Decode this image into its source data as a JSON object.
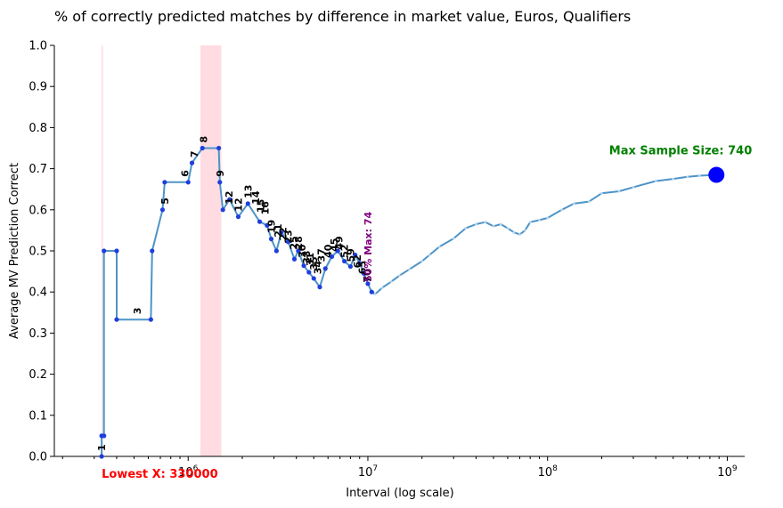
{
  "chart_data": {
    "type": "line",
    "title": "% of correctly predicted matches by difference in market value, Euros, Qualifiers",
    "xlabel": "Interval (log scale)",
    "ylabel": "Average MV Prediction Correct",
    "x_scale": "log",
    "xlim": [
      180000,
      1250000000
    ],
    "ylim": [
      0,
      1.0
    ],
    "x_tick_labels": [
      "10^6",
      "10^7",
      "10^8",
      "10^9"
    ],
    "x_tick_values": [
      1000000,
      10000000,
      100000000,
      1000000000
    ],
    "y_tick_labels": [
      "0.0",
      "0.1",
      "0.2",
      "0.3",
      "0.4",
      "0.5",
      "0.6",
      "0.7",
      "0.8",
      "0.9",
      "1.0"
    ],
    "y_tick_values": [
      0,
      0.1,
      0.2,
      0.3,
      0.4,
      0.5,
      0.6,
      0.7,
      0.8,
      0.9,
      1.0
    ],
    "grid": false,
    "series": [
      {
        "color": "#4d94c8",
        "points": [
          [
            330000,
            0.0
          ],
          [
            330000,
            0.05
          ],
          [
            340000,
            0.05
          ],
          [
            340000,
            0.5
          ],
          [
            400000,
            0.5
          ],
          [
            400000,
            0.333
          ],
          [
            620000,
            0.333
          ],
          [
            630000,
            0.5
          ],
          [
            720000,
            0.6
          ],
          [
            740000,
            0.667
          ],
          [
            1000000,
            0.667
          ],
          [
            1050000,
            0.714
          ],
          [
            1200000,
            0.75
          ],
          [
            1480000,
            0.75
          ],
          [
            1500000,
            0.667
          ],
          [
            1560000,
            0.6
          ],
          [
            1700000,
            0.625
          ],
          [
            1900000,
            0.583
          ],
          [
            2150000,
            0.615
          ],
          [
            2500000,
            0.571
          ],
          [
            2750000,
            0.562
          ],
          [
            2900000,
            0.529
          ],
          [
            3100000,
            0.5
          ],
          [
            3300000,
            0.545
          ],
          [
            3600000,
            0.522
          ],
          [
            3900000,
            0.48
          ],
          [
            4100000,
            0.5
          ],
          [
            4400000,
            0.464
          ],
          [
            4700000,
            0.448
          ],
          [
            5000000,
            0.433
          ],
          [
            5400000,
            0.412
          ],
          [
            5800000,
            0.457
          ],
          [
            6300000,
            0.486
          ],
          [
            6800000,
            0.5
          ],
          [
            7400000,
            0.475
          ],
          [
            8000000,
            0.462
          ],
          [
            8500000,
            0.49
          ],
          [
            9000000,
            0.47
          ],
          [
            9500000,
            0.445
          ],
          [
            10000000,
            0.42
          ],
          [
            10500000,
            0.4
          ],
          [
            11000000,
            0.395
          ],
          [
            12000000,
            0.41
          ],
          [
            13500000,
            0.425
          ],
          [
            15000000,
            0.44
          ],
          [
            17000000,
            0.455
          ],
          [
            20000000,
            0.475
          ],
          [
            22000000,
            0.49
          ],
          [
            25000000,
            0.51
          ],
          [
            30000000,
            0.53
          ],
          [
            35000000,
            0.555
          ],
          [
            40000000,
            0.565
          ],
          [
            45000000,
            0.57
          ],
          [
            50000000,
            0.56
          ],
          [
            55000000,
            0.565
          ],
          [
            60000000,
            0.555
          ],
          [
            65000000,
            0.545
          ],
          [
            70000000,
            0.54
          ],
          [
            75000000,
            0.55
          ],
          [
            80000000,
            0.57
          ],
          [
            90000000,
            0.575
          ],
          [
            100000000,
            0.58
          ],
          [
            120000000,
            0.6
          ],
          [
            140000000,
            0.615
          ],
          [
            170000000,
            0.62
          ],
          [
            200000000,
            0.64
          ],
          [
            250000000,
            0.645
          ],
          [
            300000000,
            0.655
          ],
          [
            400000000,
            0.67
          ],
          [
            500000000,
            0.675
          ],
          [
            600000000,
            0.68
          ],
          [
            700000000,
            0.683
          ],
          [
            870000000,
            0.685
          ]
        ]
      }
    ],
    "highlight_bands": [
      {
        "x_start": 330000,
        "x_end": 335000,
        "color": "#ffc0cb"
      },
      {
        "x_start": 1170000,
        "x_end": 1530000,
        "color": "#ffc0cb"
      }
    ],
    "sample_labels": [
      {
        "x": 330000,
        "y": 0.0,
        "text": "1"
      },
      {
        "x": 520000,
        "y": 0.333,
        "text": "3"
      },
      {
        "x": 740000,
        "y": 0.6,
        "text": "5"
      },
      {
        "x": 960000,
        "y": 0.667,
        "text": "6"
      },
      {
        "x": 1080000,
        "y": 0.714,
        "text": "7"
      },
      {
        "x": 1220000,
        "y": 0.75,
        "text": "8"
      },
      {
        "x": 1500000,
        "y": 0.667,
        "text": "9"
      },
      {
        "x": 1690000,
        "y": 0.6,
        "text": "12"
      },
      {
        "x": 1900000,
        "y": 0.583,
        "text": "12"
      },
      {
        "x": 2150000,
        "y": 0.615,
        "text": "13"
      },
      {
        "x": 2380000,
        "y": 0.6,
        "text": "14"
      },
      {
        "x": 2530000,
        "y": 0.58,
        "text": "15"
      },
      {
        "x": 2670000,
        "y": 0.575,
        "text": "16"
      },
      {
        "x": 2900000,
        "y": 0.53,
        "text": "19"
      },
      {
        "x": 3150000,
        "y": 0.52,
        "text": "21"
      },
      {
        "x": 3370000,
        "y": 0.512,
        "text": "22"
      },
      {
        "x": 3600000,
        "y": 0.505,
        "text": "23"
      },
      {
        "x": 3850000,
        "y": 0.49,
        "text": "25"
      },
      {
        "x": 4100000,
        "y": 0.49,
        "text": "28"
      },
      {
        "x": 4300000,
        "y": 0.47,
        "text": "30"
      },
      {
        "x": 4550000,
        "y": 0.455,
        "text": "33"
      },
      {
        "x": 4750000,
        "y": 0.45,
        "text": "31"
      },
      {
        "x": 5000000,
        "y": 0.44,
        "text": "35"
      },
      {
        "x": 5250000,
        "y": 0.43,
        "text": "34"
      },
      {
        "x": 5500000,
        "y": 0.46,
        "text": "37"
      },
      {
        "x": 6000000,
        "y": 0.47,
        "text": "40"
      },
      {
        "x": 6500000,
        "y": 0.485,
        "text": "45"
      },
      {
        "x": 6900000,
        "y": 0.49,
        "text": "49"
      },
      {
        "x": 7400000,
        "y": 0.47,
        "text": "52"
      },
      {
        "x": 8000000,
        "y": 0.46,
        "text": "59"
      },
      {
        "x": 8700000,
        "y": 0.445,
        "text": "62"
      },
      {
        "x": 9300000,
        "y": 0.43,
        "text": "65"
      },
      {
        "x": 9900000,
        "y": 0.41,
        "text": "70"
      }
    ],
    "annotations": [
      {
        "text": "Max Sample Size: 740",
        "x": 870000000,
        "y": 0.685,
        "color": "#008000"
      },
      {
        "text": "Lowest X: 330000",
        "x": 330000,
        "y": 0.0,
        "color": "#ff0000"
      },
      {
        "text": "50% Max: 74",
        "x": 10000000,
        "y": 0.42,
        "color": "#800080"
      }
    ]
  }
}
